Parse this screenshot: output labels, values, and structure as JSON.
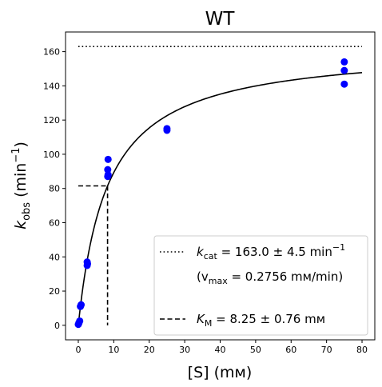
{
  "chart_data": {
    "type": "scatter",
    "title": "WT",
    "xlabel": "[S] (mм)",
    "ylabel": {
      "main": "k",
      "sub": "obs",
      "unit_open": "(min",
      "unit_sup": "−1",
      "unit_close": ")"
    },
    "xlim": [
      -3.6,
      83.6
    ],
    "ylim": [
      -8.5,
      171.5
    ],
    "xticks": [
      0,
      10,
      20,
      30,
      40,
      50,
      60,
      70,
      80
    ],
    "yticks": [
      0,
      20,
      40,
      60,
      80,
      100,
      120,
      140,
      160
    ],
    "grid": false,
    "legend_position": "lower right",
    "colors": {
      "points": "#0000ff",
      "lines": "#000000"
    },
    "series": [
      {
        "kind": "points",
        "x": [
          0,
          0.2,
          0.4,
          0.6,
          0.8,
          2.5,
          2.5,
          2.6,
          8.3,
          8.3,
          8.4,
          8.4,
          25,
          25,
          75,
          75,
          75
        ],
        "y": [
          0.5,
          1.5,
          2.5,
          11,
          12,
          35,
          37,
          36,
          87,
          91,
          97,
          88,
          114,
          115,
          141,
          149,
          154
        ]
      },
      {
        "kind": "fit",
        "model": "michaelis-menten",
        "kcat": 163.0,
        "km": 8.25,
        "x_range": [
          0,
          80
        ]
      },
      {
        "kind": "kcat_line",
        "y": 163.0,
        "x_range": [
          0,
          80
        ]
      },
      {
        "kind": "km_marker",
        "x": 8.25,
        "y": 81.5
      }
    ],
    "legend": [
      {
        "style": "dotted",
        "label_main": "k",
        "label_sub": "cat",
        "label_value": " = 163.0 ± 4.5 min",
        "label_sup": "−1"
      },
      {
        "style": "none",
        "label_open": "(v",
        "label_sub": "max",
        "label_value": " = 0.2756 mм/min)"
      },
      {
        "style": "dashed",
        "label_main": "K",
        "label_sub": "M",
        "label_value": " = 8.25 ± 0.76 mм"
      }
    ]
  }
}
